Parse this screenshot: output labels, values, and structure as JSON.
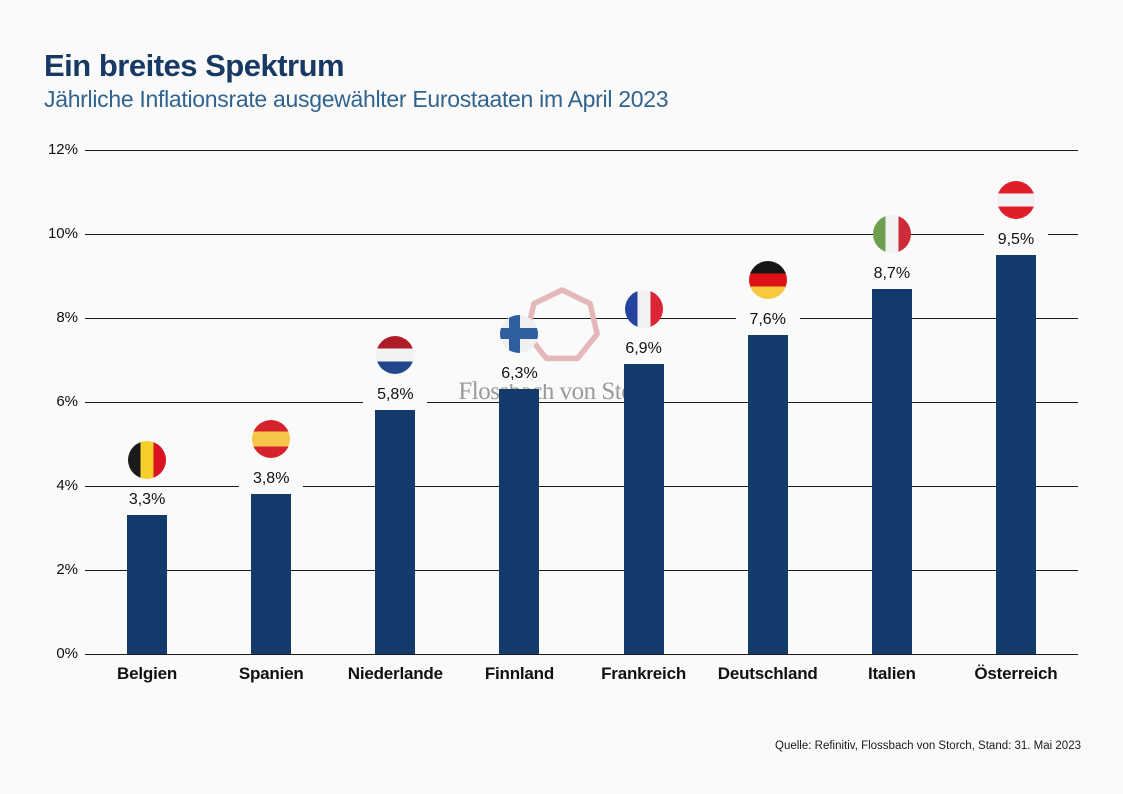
{
  "page": {
    "background_color": "#FAFAFA"
  },
  "header": {
    "title": "Ein breites Spektrum",
    "subtitle": "Jährliche Inflationsrate ausgewählter Eurostaaten im April 2023",
    "title_color": "#173963",
    "subtitle_color": "#30648F"
  },
  "watermark": {
    "logo_shape": "heptagon-outline",
    "logo_color": "#E4B8B9",
    "text": "Flossbach von Storch",
    "text_color": "#9A9A9A"
  },
  "footer": {
    "source": "Quelle: Refinitiv, Flossbach von Storch, Stand: 31. Mai 2023"
  },
  "chart_data": {
    "type": "bar",
    "title": "Ein breites Spektrum",
    "subtitle": "Jährliche Inflationsrate ausgewählter Eurostaaten im April 2023",
    "categories": [
      "Belgien",
      "Spanien",
      "Niederlande",
      "Finnland",
      "Frankreich",
      "Deutschland",
      "Italien",
      "Österreich"
    ],
    "values": [
      3.3,
      3.8,
      5.8,
      6.3,
      6.9,
      7.6,
      8.7,
      9.5
    ],
    "value_labels": [
      "3,3%",
      "3,8%",
      "5,8%",
      "6,3%",
      "6,9%",
      "7,6%",
      "8,7%",
      "9,5%"
    ],
    "unit": "%",
    "ylim": [
      0,
      12
    ],
    "yticks": [
      0,
      2,
      4,
      6,
      8,
      10,
      12
    ],
    "ytick_labels": [
      "0%",
      "2%",
      "4%",
      "6%",
      "8%",
      "10%",
      "12%"
    ],
    "grid": true,
    "legend": false,
    "bar_color": "#123A6B",
    "flags": [
      {
        "name": "belgium-flag-icon",
        "type": "vertical-stripes",
        "colors": [
          "#1A1A1A",
          "#F7CF2B",
          "#DA1222"
        ]
      },
      {
        "name": "spain-flag-icon",
        "type": "horizontal-stripes",
        "colors": [
          "#D5222C",
          "#F6C64A",
          "#D5222C"
        ],
        "weights": [
          0.3,
          0.4,
          0.3
        ]
      },
      {
        "name": "netherlands-flag-icon",
        "type": "horizontal-stripes",
        "colors": [
          "#AE1C28",
          "#F2F2F2",
          "#21468B"
        ]
      },
      {
        "name": "finland-flag-icon",
        "type": "nordic-cross",
        "background": "#EFEFEF",
        "cross_color": "#2F5F9E"
      },
      {
        "name": "france-flag-icon",
        "type": "vertical-stripes",
        "colors": [
          "#2743A0",
          "#F2F2F2",
          "#DB2434"
        ]
      },
      {
        "name": "germany-flag-icon",
        "type": "horizontal-stripes",
        "colors": [
          "#161616",
          "#DC1218",
          "#F8C93C"
        ]
      },
      {
        "name": "italy-flag-icon",
        "type": "vertical-stripes",
        "colors": [
          "#6DA04E",
          "#F2F2F2",
          "#CD2B37"
        ]
      },
      {
        "name": "austria-flag-icon",
        "type": "horizontal-stripes",
        "colors": [
          "#E01E29",
          "#F2F2F2",
          "#E01E29"
        ]
      }
    ]
  }
}
